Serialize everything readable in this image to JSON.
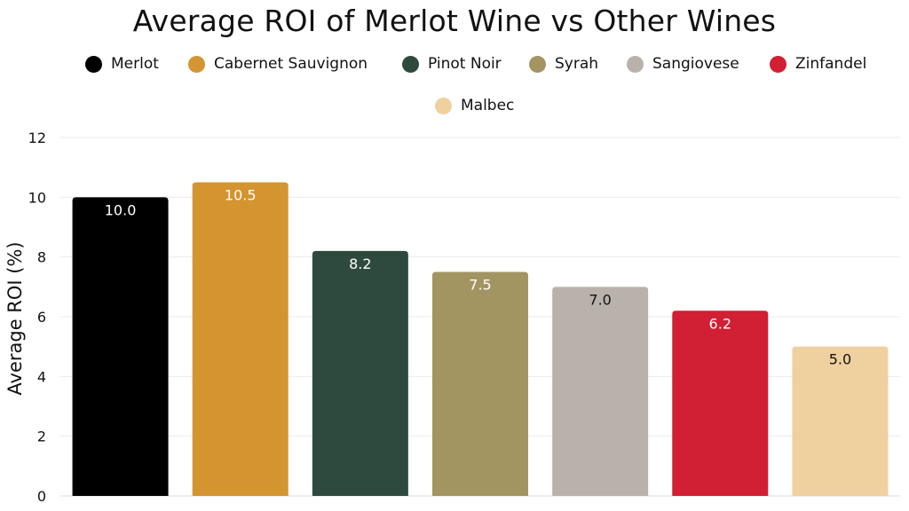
{
  "chart_data": {
    "type": "bar",
    "title": "Average ROI of Merlot Wine vs Other Wines",
    "ylabel": "Average ROI (%)",
    "xlabel": "",
    "ylim": [
      0,
      12
    ],
    "yticks": [
      0,
      2,
      4,
      6,
      8,
      10,
      12
    ],
    "grid": true,
    "legend_position": "top",
    "categories": [
      "Merlot",
      "Cabernet Sauvignon",
      "Pinot Noir",
      "Syrah",
      "Sangiovese",
      "Zinfandel",
      "Malbec"
    ],
    "values": [
      10.0,
      10.5,
      8.2,
      7.5,
      7.0,
      6.2,
      5.0
    ],
    "data_labels": [
      "10.0",
      "10.5",
      "8.2",
      "7.5",
      "7.0",
      "6.2",
      "5.0"
    ],
    "colors": [
      "#000000",
      "#d4942f",
      "#2e4a3e",
      "#a39562",
      "#b9b2ab",
      "#d11f33",
      "#efd09f"
    ],
    "label_colors": [
      "#ffffff",
      "#ffffff",
      "#ffffff",
      "#ffffff",
      "#111111",
      "#ffffff",
      "#111111"
    ]
  }
}
